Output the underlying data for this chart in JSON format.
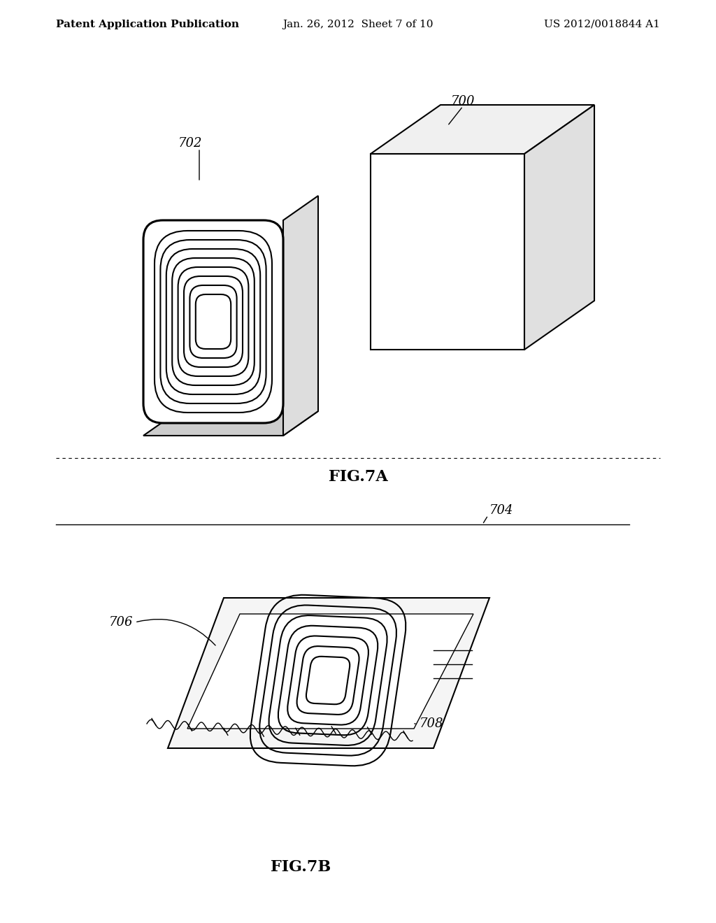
{
  "title_left": "Patent Application Publication",
  "title_center": "Jan. 26, 2012  Sheet 7 of 10",
  "title_right": "US 2012/0018844 A1",
  "fig7a_label": "FIG.7A",
  "fig7b_label": "FIG.7B",
  "label_700": "700",
  "label_702": "702",
  "label_704": "704",
  "label_706": "706",
  "label_708": "708",
  "bg_color": "#ffffff",
  "line_color": "#000000",
  "font_size_header": 11,
  "font_size_label": 13,
  "font_size_fig": 14
}
